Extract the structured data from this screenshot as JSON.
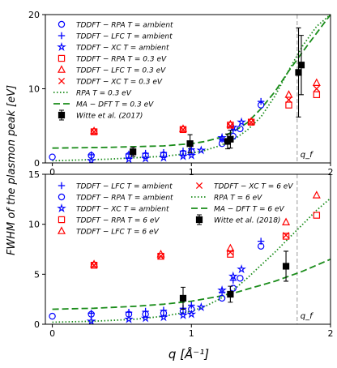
{
  "figure": {
    "ylabel": "FWHM of the plasmon peak [eV]",
    "xlabel": "q [Å⁻¹]",
    "qf_label": "q_f"
  },
  "chart_data": [
    {
      "type": "scatter",
      "panel": "top",
      "xlim": [
        -0.05,
        2.0
      ],
      "ylim": [
        0,
        20
      ],
      "xticks": [
        0,
        1,
        2
      ],
      "yticks": [
        0,
        10,
        20
      ],
      "xtick_labels": [
        "0",
        "1",
        "2"
      ],
      "ytick_labels": [
        "0",
        "10",
        "20"
      ],
      "grid": false,
      "legend_position": "top-left",
      "qf_line_x": 1.76,
      "series": [
        {
          "name": "TDDFT – RPA T = ambient",
          "legend_text": "TDDFT − RPA T = ambient",
          "kind": "marker",
          "marker": "circle",
          "color": "#0000ff",
          "x": [
            0.0,
            0.28,
            0.55,
            0.67,
            0.8,
            0.94,
            1.0,
            1.22,
            1.3,
            1.35,
            1.5
          ],
          "y": [
            0.8,
            1.0,
            1.0,
            1.0,
            1.1,
            1.3,
            1.5,
            2.6,
            3.6,
            4.6,
            7.8
          ]
        },
        {
          "name": "TDDFT – LFC T = ambient",
          "legend_text": "TDDFT − LFC T = ambient",
          "kind": "marker",
          "marker": "plus",
          "color": "#0000ff",
          "x": [
            0.28,
            0.55,
            0.67,
            0.8,
            0.94,
            1.0,
            1.22,
            1.3,
            1.5
          ],
          "y": [
            1.1,
            1.2,
            1.3,
            1.4,
            1.6,
            1.9,
            3.2,
            4.4,
            8.3
          ]
        },
        {
          "name": "TDDFT – XC T = ambient",
          "legend_text": "TDDFT − XC T = ambient",
          "kind": "marker",
          "marker": "star",
          "color": "#0000ff",
          "x": [
            0.28,
            0.55,
            0.67,
            0.8,
            0.94,
            1.0,
            1.07,
            1.22,
            1.3,
            1.36
          ],
          "y": [
            0.3,
            0.5,
            0.6,
            0.7,
            0.9,
            1.0,
            1.7,
            3.4,
            4.8,
            5.5
          ]
        },
        {
          "name": "TDDFT – RPA T = 0.3 eV",
          "legend_text": "TDDFT − RPA T = 0.3 eV",
          "kind": "marker",
          "marker": "square",
          "color": "#ff0000",
          "x": [
            0.3,
            0.94,
            1.28,
            1.43,
            1.7,
            1.9
          ],
          "y": [
            4.2,
            4.5,
            5.1,
            5.5,
            7.8,
            9.2
          ]
        },
        {
          "name": "TDDFT – LFC T = 0.3 eV",
          "legend_text": "TDDFT − LFC T = 0.3 eV",
          "kind": "marker",
          "marker": "triangle",
          "color": "#ff0000",
          "x": [
            0.3,
            0.94,
            1.28,
            1.43,
            1.7,
            1.9
          ],
          "y": [
            4.3,
            4.6,
            5.2,
            5.6,
            9.2,
            10.8
          ]
        },
        {
          "name": "TDDFT – XC T = 0.3 eV",
          "legend_text": "TDDFT − XC T = 0.3 eV",
          "kind": "marker",
          "marker": "x",
          "color": "#ff0000",
          "x": [
            0.3,
            0.94,
            1.28,
            1.43,
            1.7,
            1.9
          ],
          "y": [
            4.2,
            4.5,
            5.0,
            5.5,
            8.5,
            10.0
          ]
        },
        {
          "name": "RPA T = 0.3 eV",
          "legend_text": "RPA T = 0.3 eV",
          "kind": "line",
          "dash": "dotted",
          "color": "#1a8c1a",
          "x": [
            0.0,
            0.4,
            0.8,
            1.0,
            1.1,
            1.2,
            1.3,
            1.4,
            1.5,
            1.6,
            1.7,
            1.8,
            1.9,
            2.0
          ],
          "y": [
            0.3,
            0.5,
            0.9,
            1.3,
            1.7,
            2.3,
            3.1,
            4.4,
            6.2,
            9.0,
            12.5,
            15.8,
            18.4,
            20.0
          ]
        },
        {
          "name": "MA – DFT T = 0.3 eV",
          "legend_text": "MA − DFT T = 0.3 eV",
          "kind": "line",
          "dash": "dashed",
          "color": "#1a8c1a",
          "x": [
            0.0,
            0.4,
            0.8,
            1.0,
            1.1,
            1.2,
            1.3,
            1.4,
            1.5,
            1.6,
            1.7,
            1.8,
            1.9,
            2.0
          ],
          "y": [
            2.0,
            2.1,
            2.3,
            2.6,
            2.9,
            3.4,
            4.2,
            5.4,
            7.3,
            9.6,
            12.4,
            15.0,
            17.5,
            20.0
          ]
        },
        {
          "name": "Witte et al. (2017)",
          "legend_text": "Witte et al. (2017)",
          "kind": "errorbar",
          "marker": "square",
          "color": "#000000",
          "x": [
            0.58,
            0.99,
            1.26,
            1.28,
            1.77,
            1.79
          ],
          "y": [
            1.5,
            2.6,
            2.9,
            3.2,
            12.2,
            13.2
          ],
          "err": [
            0.6,
            1.2,
            1.0,
            1.2,
            6.0,
            4.0
          ]
        }
      ]
    },
    {
      "type": "scatter",
      "panel": "bottom",
      "xlim": [
        -0.05,
        2.0
      ],
      "ylim": [
        0,
        15
      ],
      "xticks": [
        0,
        1,
        2
      ],
      "yticks": [
        0,
        5,
        10,
        15
      ],
      "xtick_labels": [
        "0",
        "1",
        "2"
      ],
      "ytick_labels": [
        "0",
        "5",
        "10",
        "15"
      ],
      "xlabel": "q [Å⁻¹]",
      "grid": false,
      "legend_position": "top",
      "qf_line_x": 1.76,
      "series": [
        {
          "name": "TDDFT – LFC T = ambient",
          "legend_text": "TDDFT − LFC T = ambient",
          "kind": "marker",
          "marker": "plus",
          "color": "#0000ff",
          "x": [
            0.28,
            0.55,
            0.67,
            0.8,
            0.94,
            1.0,
            1.22,
            1.3,
            1.5
          ],
          "y": [
            1.1,
            1.2,
            1.3,
            1.4,
            1.6,
            1.9,
            3.2,
            4.4,
            8.3
          ]
        },
        {
          "name": "TDDFT – RPA T = ambient",
          "legend_text": "TDDFT − RPA T = ambient",
          "kind": "marker",
          "marker": "circle",
          "color": "#0000ff",
          "x": [
            0.0,
            0.28,
            0.55,
            0.67,
            0.8,
            0.94,
            1.0,
            1.22,
            1.3,
            1.35,
            1.5
          ],
          "y": [
            0.8,
            1.0,
            1.0,
            1.0,
            1.1,
            1.3,
            1.5,
            2.6,
            3.6,
            4.6,
            7.8
          ]
        },
        {
          "name": "TDDFT – XC T = ambient",
          "legend_text": "TDDFT − XC T = ambient",
          "kind": "marker",
          "marker": "star",
          "color": "#0000ff",
          "x": [
            0.28,
            0.55,
            0.67,
            0.8,
            0.94,
            1.0,
            1.07,
            1.22,
            1.3,
            1.36
          ],
          "y": [
            0.3,
            0.5,
            0.6,
            0.7,
            0.9,
            1.0,
            1.7,
            3.4,
            4.8,
            5.5
          ]
        },
        {
          "name": "TDDFT – RPA T = 6 eV",
          "legend_text": "TDDFT − RPA T = 6 eV",
          "kind": "marker",
          "marker": "square",
          "color": "#ff0000",
          "x": [
            0.3,
            0.78,
            1.28,
            1.68,
            1.9
          ],
          "y": [
            5.9,
            6.8,
            7.0,
            8.8,
            10.9
          ]
        },
        {
          "name": "TDDFT – LFC T = 6 eV",
          "legend_text": "TDDFT − LFC T = 6 eV",
          "kind": "marker",
          "marker": "triangle",
          "color": "#ff0000",
          "x": [
            0.3,
            0.78,
            1.28,
            1.68,
            1.9
          ],
          "y": [
            6.0,
            7.0,
            7.6,
            10.2,
            12.9
          ]
        },
        {
          "name": "TDDFT – XC T = 6 eV",
          "legend_text": "TDDFT − XC T = 6 eV",
          "kind": "marker",
          "marker": "x",
          "color": "#ff0000",
          "x": [
            0.3,
            0.78,
            1.28,
            1.68
          ],
          "y": [
            5.9,
            6.8,
            7.2,
            8.9
          ]
        },
        {
          "name": "RPA T = 6 eV",
          "legend_text": "RPA T = 6 eV",
          "kind": "line",
          "dash": "dotted",
          "color": "#1a8c1a",
          "x": [
            0.0,
            0.3,
            0.6,
            0.8,
            1.0,
            1.1,
            1.2,
            1.3,
            1.4,
            1.5,
            1.6,
            1.7,
            1.8,
            1.9,
            2.0
          ],
          "y": [
            0.2,
            0.3,
            0.5,
            0.8,
            1.3,
            1.8,
            2.5,
            3.4,
            4.6,
            5.9,
            7.2,
            8.6,
            10.0,
            11.4,
            12.6
          ]
        },
        {
          "name": "MA – DFT T = 6 eV",
          "legend_text": "MA − DFT T = 6 eV",
          "kind": "line",
          "dash": "dashed",
          "color": "#1a8c1a",
          "x": [
            0.0,
            0.3,
            0.6,
            0.8,
            1.0,
            1.2,
            1.3,
            1.4,
            1.5,
            1.6,
            1.7,
            1.8,
            1.9,
            2.0
          ],
          "y": [
            1.5,
            1.6,
            1.8,
            2.0,
            2.3,
            2.8,
            3.1,
            3.5,
            3.9,
            4.3,
            4.8,
            5.3,
            5.9,
            6.5
          ]
        },
        {
          "name": "Witte et al. (2018)",
          "legend_text": "Witte et al. (2018)",
          "kind": "errorbar",
          "marker": "square",
          "color": "#000000",
          "x": [
            0.94,
            1.28,
            1.68
          ],
          "y": [
            2.6,
            3.0,
            5.8
          ],
          "err": [
            1.1,
            0.8,
            1.5
          ]
        }
      ]
    }
  ]
}
